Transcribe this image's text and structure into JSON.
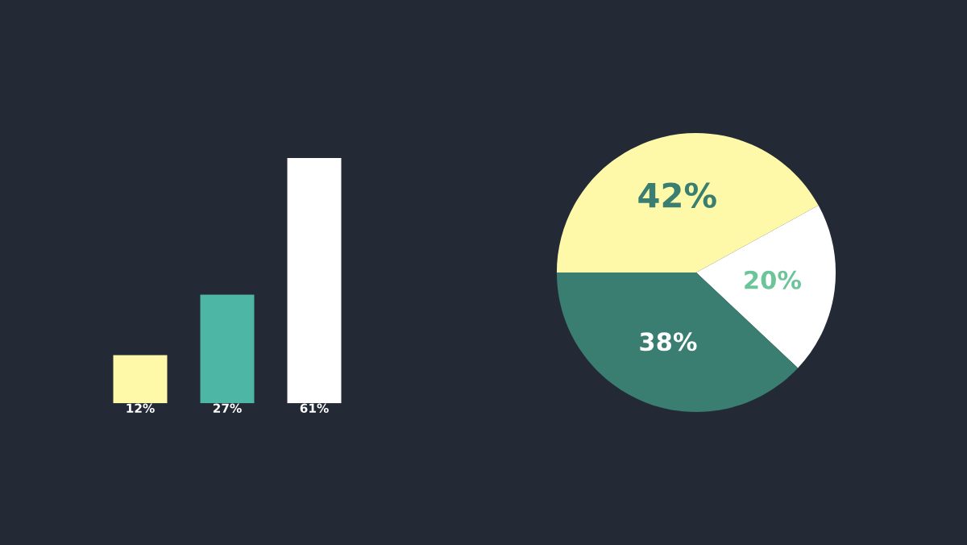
{
  "chart_data": [
    {
      "type": "bar",
      "categories": [
        null,
        null,
        null
      ],
      "values": [
        12,
        27,
        61
      ],
      "colors": [
        "#fdf9a8",
        "#4db6a4",
        "#ffffff"
      ],
      "value_labels": [
        "12%",
        "27%",
        "61%"
      ]
    },
    {
      "type": "pie",
      "categories": [
        null,
        null,
        null
      ],
      "values": [
        42,
        20,
        38
      ],
      "colors": [
        "#fdf9a8",
        "#ffffff",
        "#3a7d71"
      ],
      "value_labels": [
        "42%",
        "20%",
        "38%"
      ]
    }
  ]
}
